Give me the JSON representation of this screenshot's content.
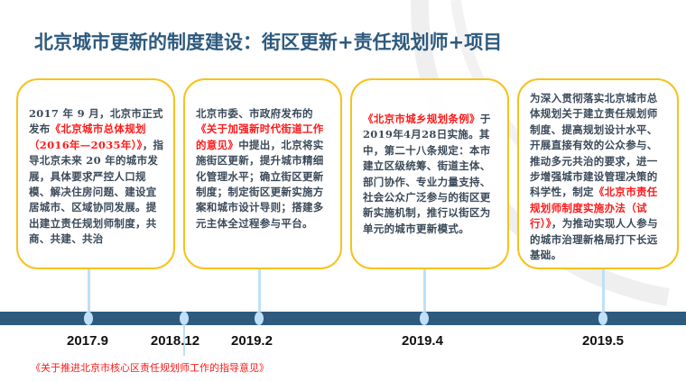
{
  "title": "北京城市更新的制度建设：街区更新+责任规划师+项目",
  "colors": {
    "title": "#2e5a7e",
    "box_border": "#f8c21c",
    "timeline": "#2e5a7e",
    "connector": "#bfe0f7",
    "highlight": "#ff1a1a"
  },
  "cards": [
    {
      "pre": "2017 年 9 月，北京市正式发布",
      "highlight": "《北京城市总体规划（2016年—2035年）》",
      "post": "，指导北京未来 20 年的城市发展，具体要求严控人口规模、解决住房问题、建设宜居城市、区域协同发展。提出建立责任规划师制度，共商、共建、共治"
    },
    {
      "pre": "北京市委、市政府发布的",
      "highlight": "《关于加强新时代街道工作的意见》",
      "post": "中提出，北京将实施街区更新，提升城市精细化管理水平；确立街区更新制度；制定街区更新实施方案和城市设计导则；搭建多元主体全过程参与平台。"
    },
    {
      "pre": "",
      "highlight": "《北京市城乡规划条例》",
      "post": "于2019年4月28日实施。其中，第二十八条规定：本市建立区级统筹、街道主体、部门协作、专业力量支持、社会公众广泛参与的街区更新实施机制，推行以街区为单元的城市更新模式。"
    },
    {
      "pre": "为深入贯彻落实北京城市总体规划关于建立责任规划师制度、提高规划设计水平、开展直接有效的公众参与、推动多元共治的要求，进一步增强城市建设管理决策的科学性，制定",
      "highlight": "《北京市责任规划师制度实施办法（试行）》",
      "post": "，为推动实现人人参与的城市治理新格局打下长远基础。"
    }
  ],
  "timeline": {
    "dates": [
      "2017.9",
      "2018.12",
      "2019.2",
      "2019.4",
      "2019.5"
    ],
    "note": "《关于推进北京市核心区责任规划师工作的指导意见》"
  }
}
